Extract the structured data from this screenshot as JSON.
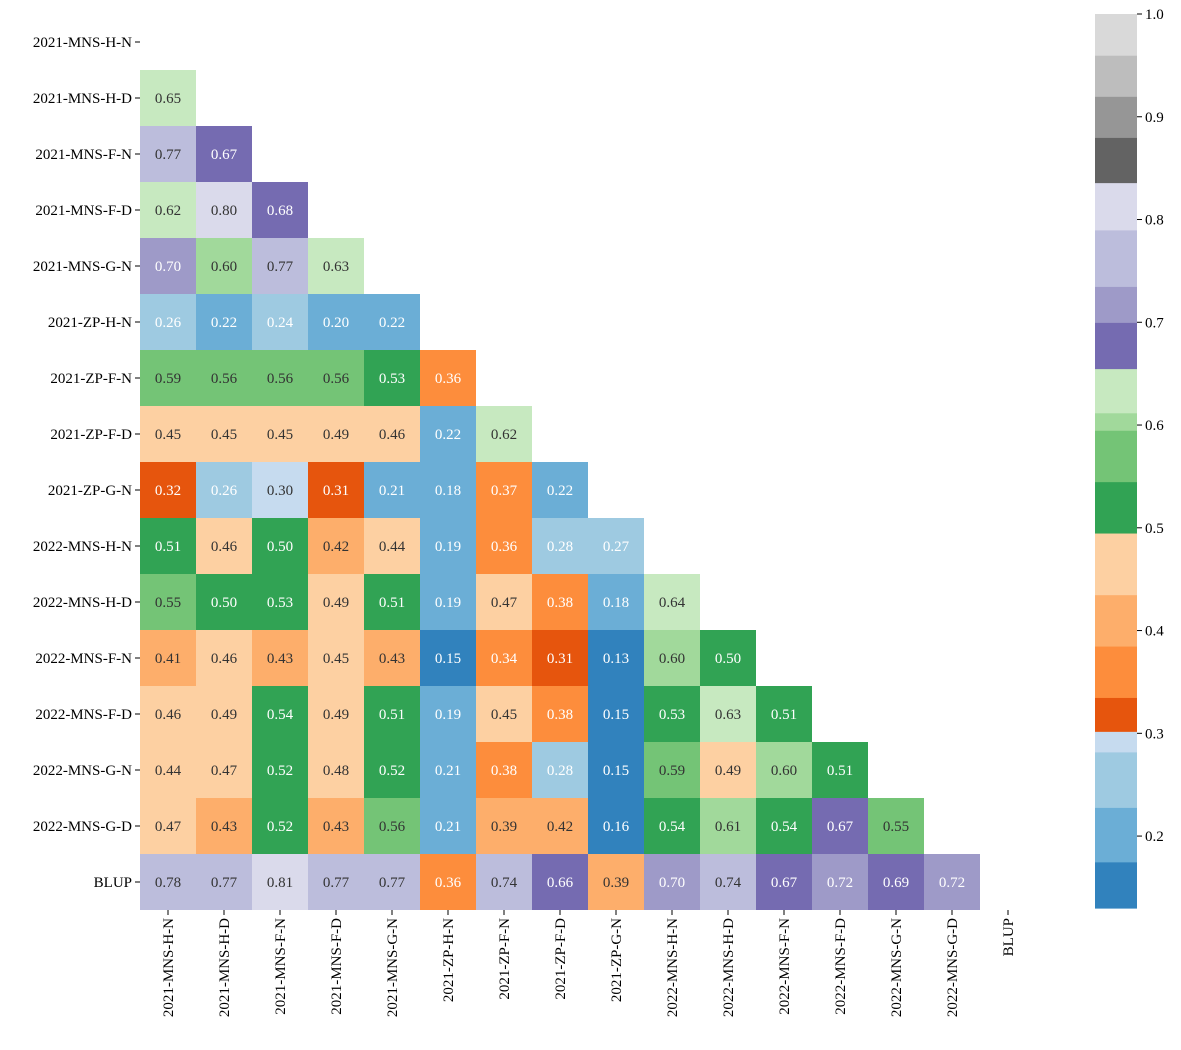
{
  "chart_data": {
    "type": "heatmap",
    "title": "",
    "xlabel": "",
    "ylabel": "",
    "layout": "lower-triangle",
    "labels": [
      "2021-MNS-H-N",
      "2021-MNS-H-D",
      "2021-MNS-F-N",
      "2021-MNS-F-D",
      "2021-MNS-G-N",
      "2021-ZP-H-N",
      "2021-ZP-F-N",
      "2021-ZP-F-D",
      "2021-ZP-G-N",
      "2022-MNS-H-N",
      "2022-MNS-H-D",
      "2022-MNS-F-N",
      "2022-MNS-F-D",
      "2022-MNS-G-N",
      "2022-MNS-G-D",
      "BLUP"
    ],
    "x_tick_labels": [
      "2021-MNS-H-N",
      "2021-MNS-H-D",
      "2021-MNS-F-N",
      "2021-MNS-F-D",
      "2021-MNS-G-N",
      "2021-ZP-H-N",
      "2021-ZP-F-N",
      "2021-ZP-F-D",
      "2021-ZP-G-N",
      "2022-MNS-H-N",
      "2022-MNS-H-D",
      "2022-MNS-F-N",
      "2022-MNS-F-D",
      "2022-MNS-G-N",
      "2022-MNS-G-D",
      "BLUP"
    ],
    "y_tick_labels": [
      "2021-MNS-H-N",
      "2021-MNS-H-D",
      "2021-MNS-F-N",
      "2021-MNS-F-D",
      "2021-MNS-G-N",
      "2021-ZP-H-N",
      "2021-ZP-F-N",
      "2021-ZP-F-D",
      "2021-ZP-G-N",
      "2022-MNS-H-N",
      "2022-MNS-H-D",
      "2022-MNS-F-N",
      "2022-MNS-F-D",
      "2022-MNS-G-N",
      "2022-MNS-G-D",
      "BLUP"
    ],
    "rows": [
      [],
      [
        "0.65"
      ],
      [
        "0.77",
        "0.67"
      ],
      [
        "0.62",
        "0.80",
        "0.68"
      ],
      [
        "0.70",
        "0.60",
        "0.77",
        "0.63"
      ],
      [
        "0.26",
        "0.22",
        "0.24",
        "0.20",
        "0.22"
      ],
      [
        "0.59",
        "0.56",
        "0.56",
        "0.56",
        "0.53",
        "0.36"
      ],
      [
        "0.45",
        "0.45",
        "0.45",
        "0.49",
        "0.46",
        "0.22",
        "0.62"
      ],
      [
        "0.32",
        "0.26",
        "0.30",
        "0.31",
        "0.21",
        "0.18",
        "0.37",
        "0.22"
      ],
      [
        "0.51",
        "0.46",
        "0.50",
        "0.42",
        "0.44",
        "0.19",
        "0.36",
        "0.28",
        "0.27"
      ],
      [
        "0.55",
        "0.50",
        "0.53",
        "0.49",
        "0.51",
        "0.19",
        "0.47",
        "0.38",
        "0.18",
        "0.64"
      ],
      [
        "0.41",
        "0.46",
        "0.43",
        "0.45",
        "0.43",
        "0.15",
        "0.34",
        "0.31",
        "0.13",
        "0.60",
        "0.50"
      ],
      [
        "0.46",
        "0.49",
        "0.54",
        "0.49",
        "0.51",
        "0.19",
        "0.45",
        "0.38",
        "0.15",
        "0.53",
        "0.63",
        "0.51"
      ],
      [
        "0.44",
        "0.47",
        "0.52",
        "0.48",
        "0.52",
        "0.21",
        "0.38",
        "0.28",
        "0.15",
        "0.59",
        "0.49",
        "0.60",
        "0.51"
      ],
      [
        "0.47",
        "0.43",
        "0.52",
        "0.43",
        "0.56",
        "0.21",
        "0.39",
        "0.42",
        "0.16",
        "0.54",
        "0.61",
        "0.54",
        "0.67",
        "0.55"
      ],
      [
        "0.78",
        "0.77",
        "0.81",
        "0.77",
        "0.77",
        "0.36",
        "0.74",
        "0.66",
        "0.39",
        "0.70",
        "0.74",
        "0.67",
        "0.72",
        "0.69",
        "0.72"
      ]
    ],
    "colorbar": {
      "min": 0.13,
      "max": 1.0,
      "ticks": [
        {
          "value": 0.2,
          "label": "0.2"
        },
        {
          "value": 0.3,
          "label": "0.3"
        },
        {
          "value": 0.4,
          "label": "0.4"
        },
        {
          "value": 0.5,
          "label": "0.5"
        },
        {
          "value": 0.6,
          "label": "0.6"
        },
        {
          "value": 0.7,
          "label": "0.7"
        },
        {
          "value": 0.8,
          "label": "0.8"
        },
        {
          "value": 0.9,
          "label": "0.9"
        },
        {
          "value": 1.0,
          "label": "1.0"
        }
      ],
      "bins": [
        {
          "from": 0.13,
          "to": 0.175,
          "color": "#3182bd",
          "text_color": "#ffffff"
        },
        {
          "from": 0.175,
          "to": 0.228,
          "color": "#6baed6",
          "text_color": "#ffffff"
        },
        {
          "from": 0.228,
          "to": 0.282,
          "color": "#9ecae1",
          "text_color": "#ffffff"
        },
        {
          "from": 0.282,
          "to": 0.302,
          "color": "#c6dbef",
          "text_color": "#333333"
        },
        {
          "from": 0.302,
          "to": 0.335,
          "color": "#e6550d",
          "text_color": "#ffffff"
        },
        {
          "from": 0.335,
          "to": 0.385,
          "color": "#fd8d3c",
          "text_color": "#ffffff"
        },
        {
          "from": 0.385,
          "to": 0.435,
          "color": "#fdae6b",
          "text_color": "#333333"
        },
        {
          "from": 0.435,
          "to": 0.495,
          "color": "#fdd0a2",
          "text_color": "#333333"
        },
        {
          "from": 0.495,
          "to": 0.545,
          "color": "#31a354",
          "text_color": "#ffffff"
        },
        {
          "from": 0.545,
          "to": 0.595,
          "color": "#74c476",
          "text_color": "#333333"
        },
        {
          "from": 0.595,
          "to": 0.612,
          "color": "#a1d99b",
          "text_color": "#333333"
        },
        {
          "from": 0.612,
          "to": 0.655,
          "color": "#c7e9c0",
          "text_color": "#333333"
        },
        {
          "from": 0.655,
          "to": 0.7,
          "color": "#756bb1",
          "text_color": "#ffffff"
        },
        {
          "from": 0.7,
          "to": 0.735,
          "color": "#9e9ac8",
          "text_color": "#ffffff"
        },
        {
          "from": 0.735,
          "to": 0.79,
          "color": "#bcbddc",
          "text_color": "#333333"
        },
        {
          "from": 0.79,
          "to": 0.836,
          "color": "#dadaeb",
          "text_color": "#333333"
        },
        {
          "from": 0.836,
          "to": 0.88,
          "color": "#636363",
          "text_color": "#ffffff"
        },
        {
          "from": 0.88,
          "to": 0.92,
          "color": "#969696",
          "text_color": "#ffffff"
        },
        {
          "from": 0.92,
          "to": 0.96,
          "color": "#bdbdbd",
          "text_color": "#333333"
        },
        {
          "from": 0.96,
          "to": 1.0,
          "color": "#d9d9d9",
          "text_color": "#333333"
        }
      ]
    }
  }
}
